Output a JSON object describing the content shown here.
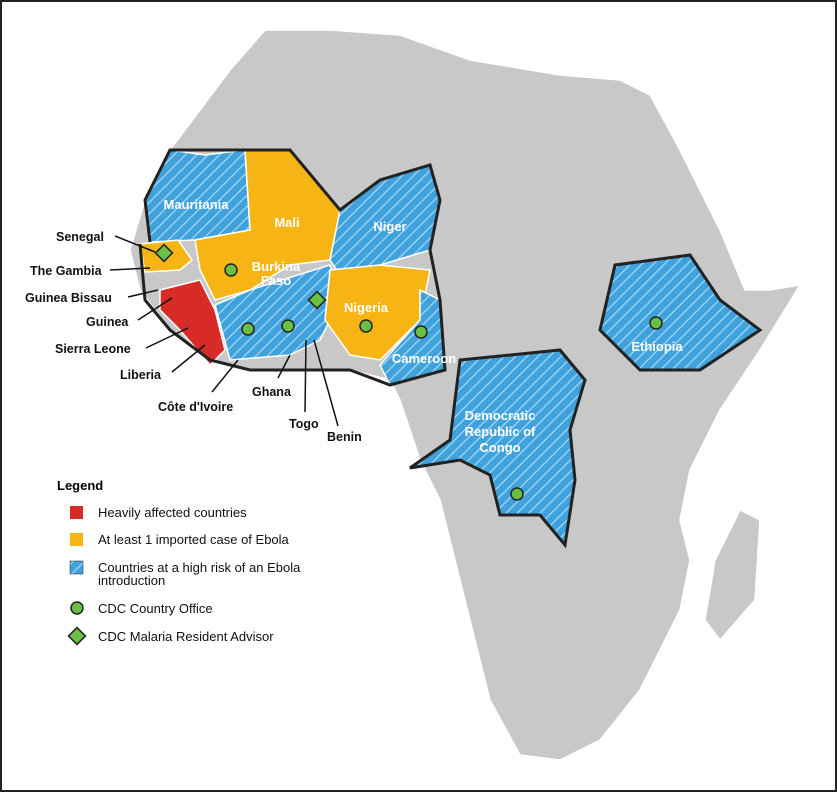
{
  "map": {
    "labels": [
      {
        "lines": [
          "Mauritania"
        ]
      },
      {
        "lines": [
          "Mali"
        ]
      },
      {
        "lines": [
          "Niger"
        ]
      },
      {
        "lines": [
          "Burkina",
          "Faso"
        ]
      },
      {
        "lines": [
          "Nigeria"
        ]
      },
      {
        "lines": [
          "Cameroon"
        ]
      },
      {
        "lines": [
          "Ethiopia"
        ]
      },
      {
        "lines": [
          "Democratic",
          "Republic of",
          "Congo"
        ]
      }
    ],
    "callouts": [
      "Senegal",
      "The Gambia",
      "Guinea Bissau",
      "Guinea",
      "Sierra Leone",
      "Liberia",
      "Côte d'Ivoire",
      "Ghana",
      "Togo",
      "Benin"
    ]
  },
  "legend": {
    "title": "Legend",
    "items": [
      {
        "lines": [
          "Heavily affected countries"
        ]
      },
      {
        "lines": [
          "At least 1 imported case of Ebola"
        ]
      },
      {
        "lines": [
          "Countries at a high risk of an Ebola",
          "introduction"
        ]
      },
      {
        "lines": [
          "CDC Country Office"
        ]
      },
      {
        "lines": [
          "CDC Malaria Resident Advisor"
        ]
      }
    ]
  }
}
